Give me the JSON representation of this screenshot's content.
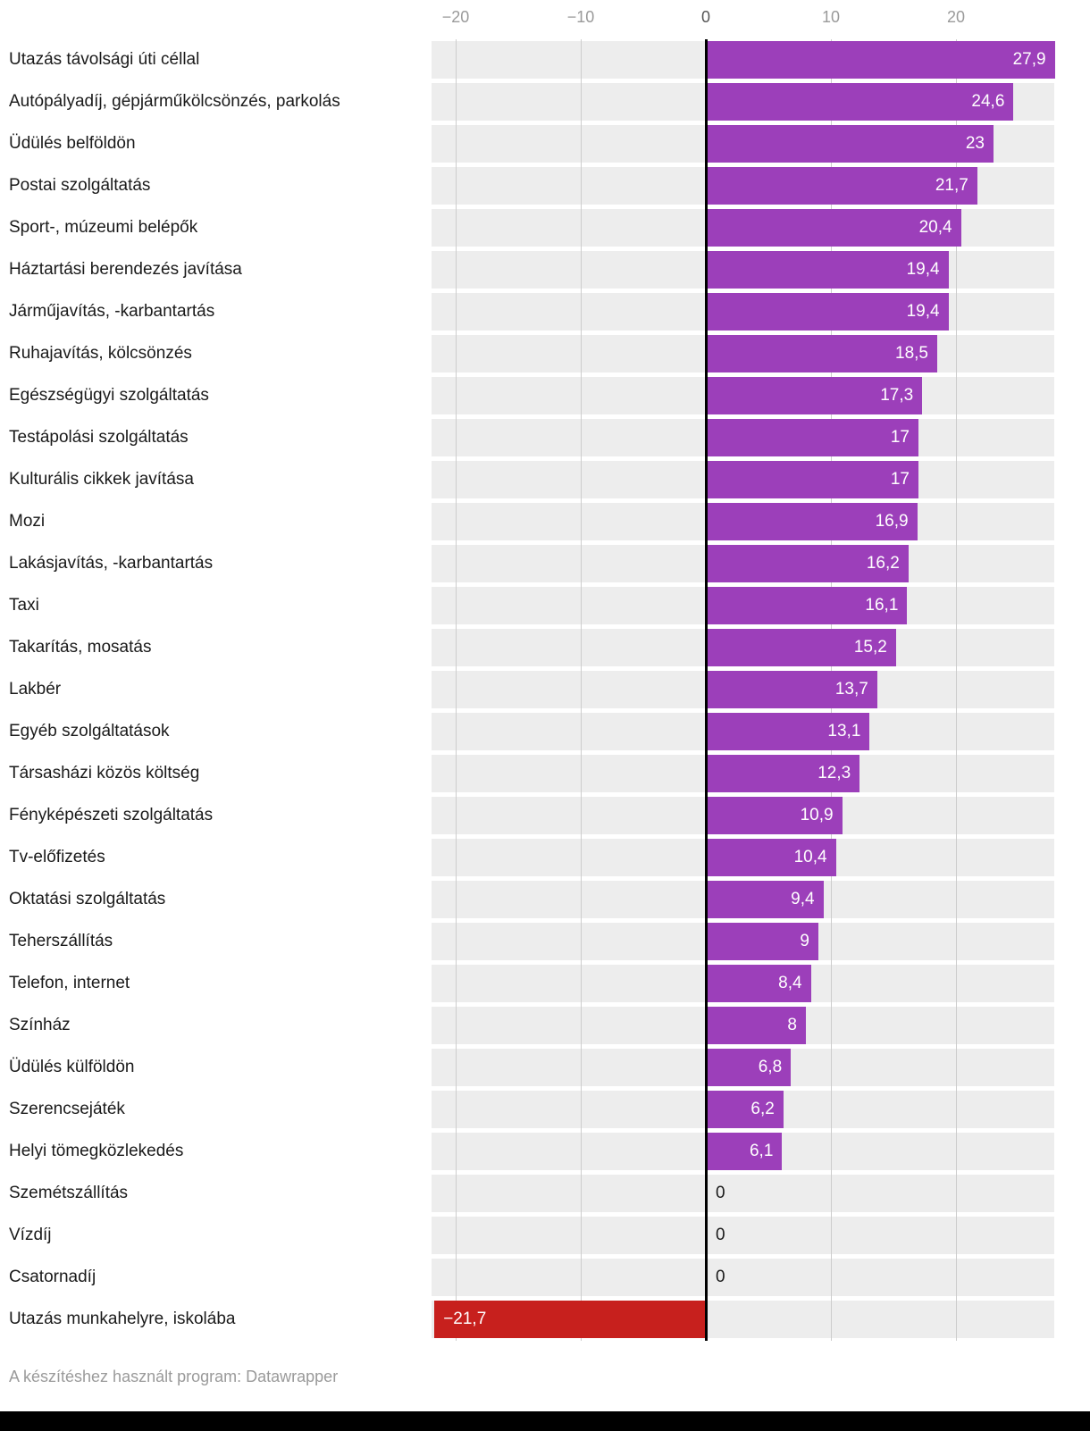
{
  "chart_data": {
    "type": "bar",
    "orientation": "horizontal",
    "categories": [
      "Utazás távolsági úti céllal",
      "Autópályadíj, gépjárműkölcsönzés, parkolás",
      "Üdülés belföldön",
      "Postai szolgáltatás",
      "Sport-, múzeumi belépők",
      "Háztartási berendezés javítása",
      "Járműjavítás, -karbantartás",
      "Ruhajavítás, kölcsönzés",
      "Egészségügyi szolgáltatás",
      "Testápolási szolgáltatás",
      "Kulturális cikkek javítása",
      "Mozi",
      "Lakásjavítás, -karbantartás",
      "Taxi",
      "Takarítás, mosatás",
      "Lakbér",
      "Egyéb szolgáltatások",
      "Társasházi közös költség",
      "Fényképészeti szolgáltatás",
      "Tv-előfizetés",
      "Oktatási szolgáltatás",
      "Teherszállítás",
      "Telefon, internet",
      "Színház",
      "Üdülés külföldön",
      "Szerencsejáték",
      "Helyi tömegközlekedés",
      "Szemétszállítás",
      "Vízdíj",
      "Csatornadíj",
      "Utazás munkahelyre, iskolába"
    ],
    "values": [
      27.9,
      24.6,
      23,
      21.7,
      20.4,
      19.4,
      19.4,
      18.5,
      17.3,
      17,
      17,
      16.9,
      16.2,
      16.1,
      15.2,
      13.7,
      13.1,
      12.3,
      10.9,
      10.4,
      9.4,
      9,
      8.4,
      8,
      6.8,
      6.2,
      6.1,
      0,
      0,
      0,
      -21.7
    ],
    "display_values": [
      "27,9",
      "24,6",
      "23",
      "21,7",
      "20,4",
      "19,4",
      "19,4",
      "18,5",
      "17,3",
      "17",
      "17",
      "16,9",
      "16,2",
      "16,1",
      "15,2",
      "13,7",
      "13,1",
      "12,3",
      "10,9",
      "10,4",
      "9,4",
      "9",
      "8,4",
      "8",
      "6,8",
      "6,2",
      "6,1",
      "0",
      "0",
      "0",
      "−21,7"
    ],
    "x_ticks": [
      -20,
      -10,
      0,
      10,
      20
    ],
    "x_tick_labels": [
      "−20",
      "−10",
      "0",
      "10",
      "20"
    ],
    "xlim": [
      -21.9,
      27.9
    ],
    "grid": true,
    "legend": "none",
    "colors": {
      "positive": "#9c3fba",
      "negative": "#c7201d",
      "row_background": "#ededed",
      "gridline": "#cdcdcd",
      "zero_line": "#000000",
      "value_label": "#ffffff",
      "category_label": "#1a1a1a"
    }
  },
  "footer": {
    "credit": "A készítéshez használt program: Datawrapper"
  }
}
